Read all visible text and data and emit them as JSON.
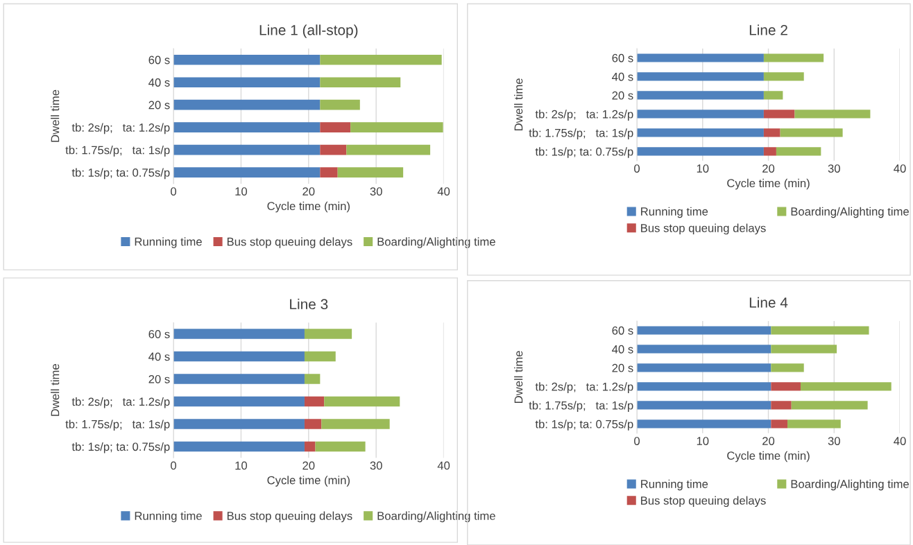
{
  "chart_data": [
    {
      "type": "bar",
      "orientation": "horizontal",
      "stacked": true,
      "title": "Line 1 (all-stop)",
      "xlabel": "Cycle time (min)",
      "ylabel": "Dwell time",
      "categories": [
        "60 s",
        "40 s",
        "20 s",
        "tb: 2s/p;   ta: 1.2s/p",
        "tb: 1.75s/p;   ta: 1s/p",
        "tb: 1s/p; ta: 0.75s/p"
      ],
      "xlim": [
        0,
        40
      ],
      "xticks": [
        0,
        10,
        20,
        30,
        40
      ],
      "grid": "x",
      "legend": "bottom",
      "series": [
        {
          "name": "Running time",
          "color": "#4f81bd",
          "values": [
            21.7,
            21.7,
            21.7,
            21.7,
            21.7,
            21.7
          ]
        },
        {
          "name": "Bus stop queuing delays",
          "color": "#c0504d",
          "values": [
            0,
            0,
            0,
            4.5,
            3.9,
            2.6
          ]
        },
        {
          "name": "Boarding/Alighting time",
          "color": "#9bbb59",
          "values": [
            18.0,
            11.9,
            5.9,
            13.7,
            12.4,
            9.7
          ]
        }
      ]
    },
    {
      "type": "bar",
      "orientation": "horizontal",
      "stacked": true,
      "title": "Line 2",
      "xlabel": "Cycle time (min)",
      "ylabel": "Dwell time",
      "categories": [
        "60 s",
        "40 s",
        "20 s",
        "tb: 2s/p;   ta: 1.2s/p",
        "tb: 1.75s/p;   ta: 1s/p",
        "tb: 1s/p; ta: 0.75s/p"
      ],
      "xlim": [
        0,
        40
      ],
      "xticks": [
        0,
        10,
        20,
        30,
        40
      ],
      "grid": "x",
      "legend": "bottom",
      "series": [
        {
          "name": "Running time",
          "color": "#4f81bd",
          "values": [
            19.3,
            19.3,
            19.3,
            19.3,
            19.3,
            19.3
          ]
        },
        {
          "name": "Bus stop queuing delays",
          "color": "#c0504d",
          "values": [
            0,
            0,
            0,
            4.7,
            2.5,
            1.9
          ]
        },
        {
          "name": "Boarding/Alighting time",
          "color": "#9bbb59",
          "values": [
            9.1,
            6.1,
            2.9,
            11.5,
            9.5,
            6.8
          ]
        }
      ]
    },
    {
      "type": "bar",
      "orientation": "horizontal",
      "stacked": true,
      "title": "Line 3",
      "xlabel": "Cycle time (min)",
      "ylabel": "Dwell time",
      "categories": [
        "60 s",
        "40 s",
        "20 s",
        "tb: 2s/p;   ta: 1.2s/p",
        "tb: 1.75s/p;   ta: 1s/p",
        "tb: 1s/p; ta: 0.75s/p"
      ],
      "xlim": [
        0,
        40
      ],
      "xticks": [
        0,
        10,
        20,
        30,
        40
      ],
      "grid": "x",
      "legend": "bottom",
      "series": [
        {
          "name": "Running time",
          "color": "#4f81bd",
          "values": [
            19.4,
            19.4,
            19.4,
            19.4,
            19.4,
            19.4
          ]
        },
        {
          "name": "Bus stop queuing delays",
          "color": "#c0504d",
          "values": [
            0,
            0,
            0,
            2.9,
            2.5,
            1.6
          ]
        },
        {
          "name": "Boarding/Alighting time",
          "color": "#9bbb59",
          "values": [
            7.0,
            4.6,
            2.3,
            11.2,
            10.1,
            7.4
          ]
        }
      ]
    },
    {
      "type": "bar",
      "orientation": "horizontal",
      "stacked": true,
      "title": "Line 4",
      "xlabel": "Cycle time (min)",
      "ylabel": "Dwell time",
      "categories": [
        "60 s",
        "40 s",
        "20 s",
        "tb: 2s/p;   ta: 1.2s/p",
        "tb: 1.75s/p;   ta: 1s/p",
        "tb: 1s/p; ta: 0.75s/p"
      ],
      "xlim": [
        0,
        40
      ],
      "xticks": [
        0,
        10,
        20,
        30,
        40
      ],
      "grid": "x",
      "legend": "bottom",
      "series": [
        {
          "name": "Running time",
          "color": "#4f81bd",
          "values": [
            20.4,
            20.4,
            20.4,
            20.4,
            20.4,
            20.4
          ]
        },
        {
          "name": "Bus stop queuing delays",
          "color": "#c0504d",
          "values": [
            0,
            0,
            0,
            4.5,
            3.1,
            2.5
          ]
        },
        {
          "name": "Boarding/Alighting time",
          "color": "#9bbb59",
          "values": [
            14.9,
            10.0,
            5.0,
            13.8,
            11.6,
            8.1
          ]
        }
      ]
    }
  ]
}
